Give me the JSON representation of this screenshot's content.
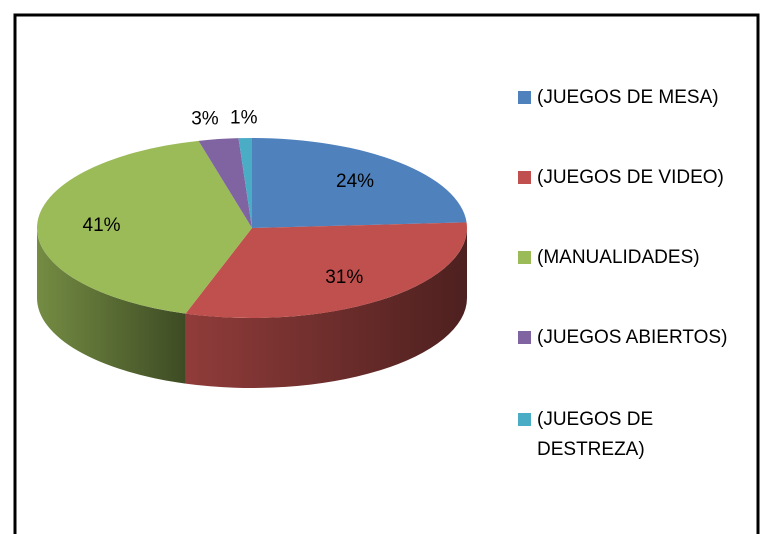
{
  "chart_data": {
    "type": "pie",
    "categories": [
      "(JUEGOS DE MESA)",
      "(JUEGOS DE VIDEO)",
      "(MANUALIDADES)",
      "(JUEGOS ABIERTOS)",
      "(JUEGOS DE DESTREZA)"
    ],
    "values": [
      24,
      31,
      41,
      3,
      1
    ],
    "value_labels": [
      "24%",
      "31%",
      "41%",
      "3%",
      "1%"
    ],
    "colors": [
      "#4f81bd",
      "#c0504d",
      "#9bbb59",
      "#8064a2",
      "#4bacc6"
    ],
    "legend": "right"
  }
}
